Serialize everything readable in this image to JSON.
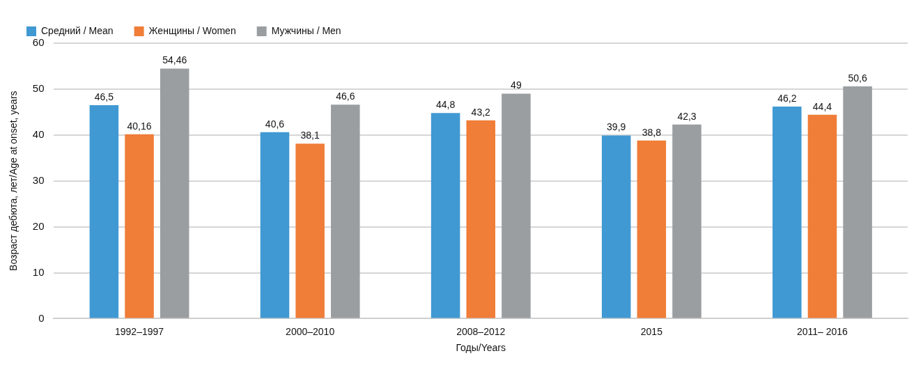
{
  "chart_data": {
    "type": "bar",
    "xlabel": "Годы/Years",
    "ylabel": "Возраст дебюта, лет/Age at onset, years",
    "categories": [
      "1992–1997",
      "2000–2010",
      "2008–2012",
      "2015",
      "2011– 2016"
    ],
    "series": [
      {
        "name": "Средний / Mean",
        "color": "#4099d2",
        "values": [
          46.5,
          40.6,
          44.8,
          39.9,
          46.2
        ],
        "value_labels": [
          "46,5",
          "40,6",
          "44,8",
          "39,9",
          "46,2"
        ]
      },
      {
        "name": "Женщины / Women",
        "color": "#f07d38",
        "values": [
          40.16,
          38.1,
          43.2,
          38.8,
          44.4
        ],
        "value_labels": [
          "40,16",
          "38,1",
          "43,2",
          "38,8",
          "44,4"
        ]
      },
      {
        "name": "Мужчины / Men",
        "color": "#9a9ea1",
        "values": [
          54.46,
          46.6,
          49,
          42.3,
          50.6
        ],
        "value_labels": [
          "54,46",
          "46,6",
          "49",
          "42,3",
          "50,6"
        ]
      }
    ],
    "ylim": [
      0,
      60
    ],
    "yticks": [
      0,
      10,
      20,
      30,
      40,
      50,
      60
    ],
    "grid": "y",
    "legend": "top left"
  }
}
